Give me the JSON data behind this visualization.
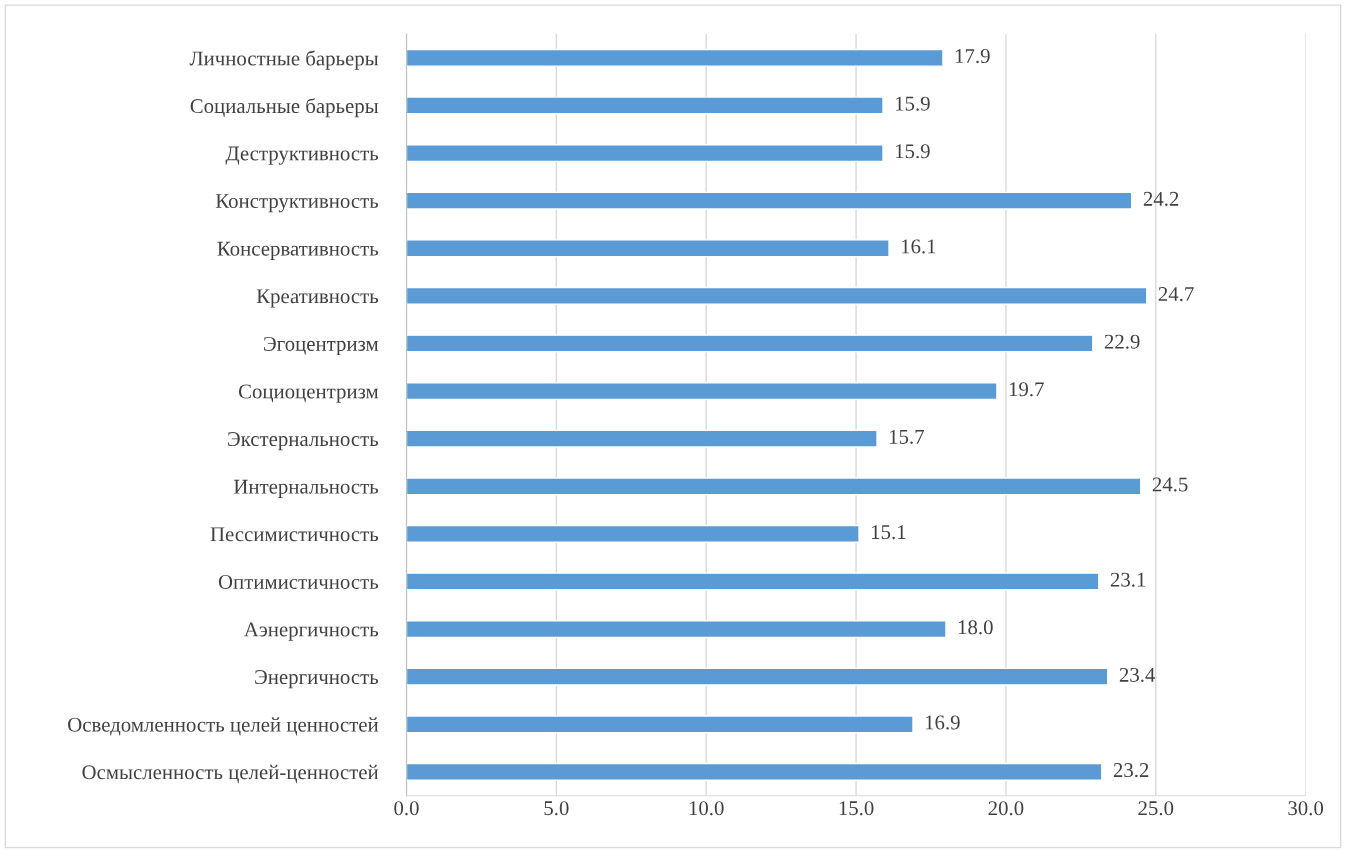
{
  "chart_data": {
    "type": "bar",
    "orientation": "horizontal",
    "categories": [
      "Личностные барьеры",
      "Социальные барьеры",
      "Деструктивность",
      "Конструктивность",
      "Консервативность",
      "Креативность",
      "Эгоцентризм",
      "Социоцентризм",
      "Экстернальность",
      "Интернальность",
      "Пессимистичность",
      "Оптимистичность",
      "Аэнергичность",
      "Энергичность",
      "Осведомленность целей ценностей",
      "Осмысленность целей-ценностей"
    ],
    "values": [
      17.9,
      15.9,
      15.9,
      24.2,
      16.1,
      24.7,
      22.9,
      19.7,
      15.7,
      24.5,
      15.1,
      23.1,
      18.0,
      23.4,
      16.9,
      23.2
    ],
    "value_labels": [
      "17.9",
      "15.9",
      "15.9",
      "24.2",
      "16.1",
      "24.7",
      "22.9",
      "19.7",
      "15.7",
      "24.5",
      "15.1",
      "23.1",
      "18.0",
      "23.4",
      "16.9",
      "23.2"
    ],
    "color": "#5b9bd5",
    "xlim": [
      0,
      30
    ],
    "xticks": [
      {
        "value": 0,
        "label": "0.0"
      },
      {
        "value": 5,
        "label": "5.0"
      },
      {
        "value": 10,
        "label": "10.0"
      },
      {
        "value": 15,
        "label": "15.0"
      },
      {
        "value": 20,
        "label": "20.0"
      },
      {
        "value": 25,
        "label": "25.0"
      },
      {
        "value": 30,
        "label": "30.0"
      }
    ],
    "grid": "x",
    "legend": false
  }
}
